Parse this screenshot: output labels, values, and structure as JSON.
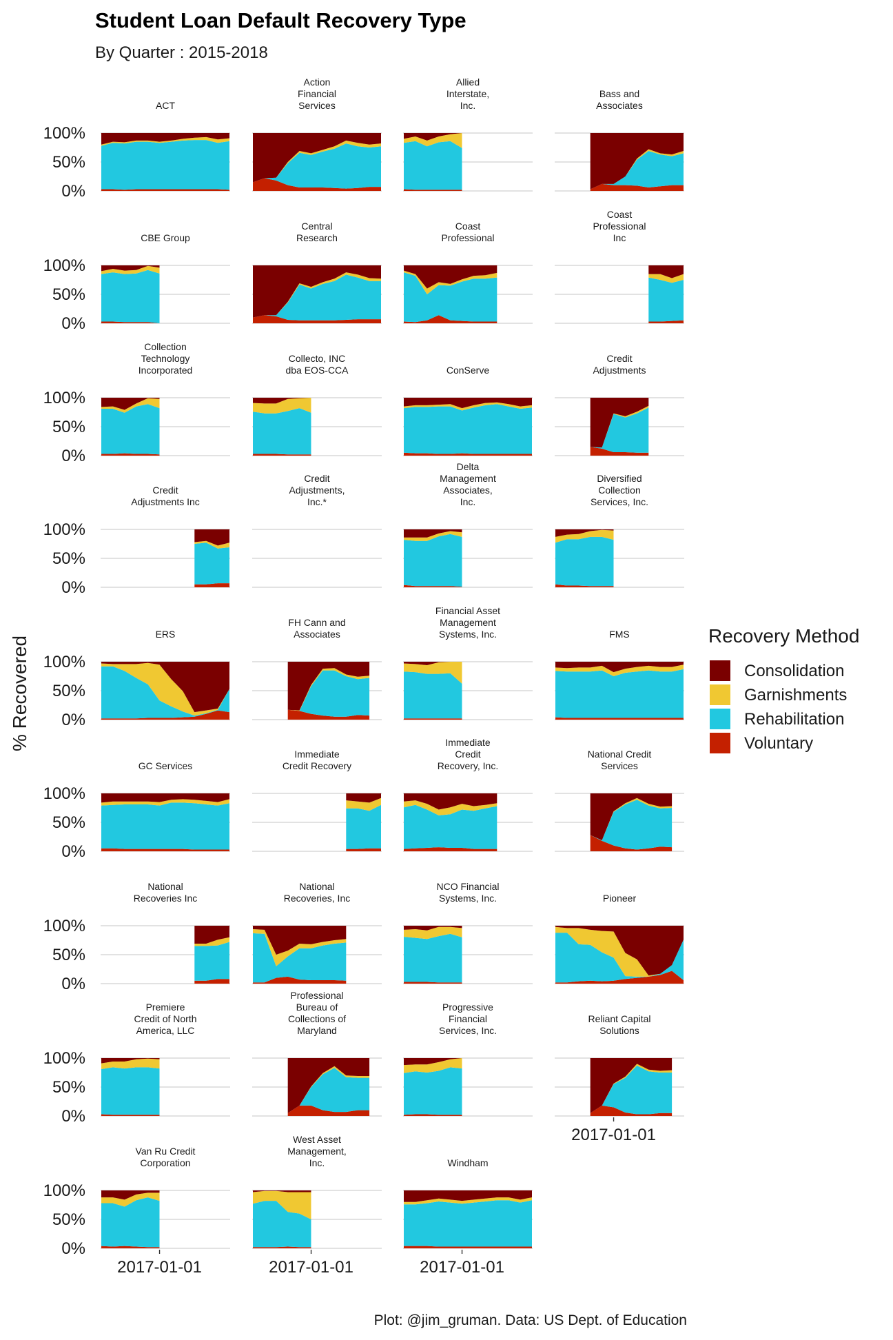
{
  "colors": {
    "Consolidation": "#7a0000",
    "Garnishments": "#f0c832",
    "Rehabilitation": "#22c8e0",
    "Voluntary": "#c42000"
  },
  "chart_data": {
    "type": "area",
    "stacked": "fill",
    "title": "Student Loan Default Recovery Type",
    "subtitle": "By Quarter : 2015-2018",
    "ylabel": "% Recovered",
    "xlabel": "",
    "ylim": [
      0,
      1
    ],
    "y_ticks": [
      "0%",
      "50%",
      "100%"
    ],
    "x_tick_label": "2017-01-01",
    "x_quarters": [
      "2015-Q4",
      "2016-Q1",
      "2016-Q2",
      "2016-Q3",
      "2016-Q4",
      "2017-Q1",
      "2017-Q2",
      "2017-Q3",
      "2017-Q4",
      "2018-Q1",
      "2018-Q2",
      "2018-Q3"
    ],
    "x_tick_quarter_index": 5,
    "grid": true,
    "facet_columns": 4,
    "legend": {
      "title": "Recovery Method",
      "position": "right",
      "entries": [
        "Consolidation",
        "Garnishments",
        "Rehabilitation",
        "Voluntary"
      ]
    },
    "caption": "Plot: @jim_gruman. Data: US Dept. of Education",
    "stack_order_bottom_to_top": [
      "Voluntary",
      "Rehabilitation",
      "Garnishments",
      "Consolidation"
    ],
    "facets": [
      {
        "label": "ACT",
        "start": 0,
        "voluntary": [
          0.03,
          0.03,
          0.02,
          0.03,
          0.03,
          0.03,
          0.03,
          0.03,
          0.03,
          0.03,
          0.03,
          0.02
        ],
        "rehab": [
          0.75,
          0.8,
          0.8,
          0.82,
          0.82,
          0.8,
          0.82,
          0.84,
          0.85,
          0.85,
          0.8,
          0.84
        ],
        "garnish": [
          0.02,
          0.02,
          0.02,
          0.02,
          0.02,
          0.02,
          0.02,
          0.03,
          0.04,
          0.05,
          0.06,
          0.05
        ]
      },
      {
        "label": "Action\nFinancial\nServices",
        "start": 0,
        "voluntary": [
          0.15,
          0.22,
          0.18,
          0.1,
          0.06,
          0.06,
          0.06,
          0.05,
          0.04,
          0.05,
          0.07,
          0.07
        ],
        "rehab": [
          0,
          0,
          0.05,
          0.38,
          0.6,
          0.56,
          0.62,
          0.68,
          0.78,
          0.72,
          0.68,
          0.7
        ],
        "garnish": [
          0,
          0,
          0,
          0.02,
          0.03,
          0.03,
          0.03,
          0.04,
          0.05,
          0.06,
          0.05,
          0.05
        ]
      },
      {
        "label": "Allied\nInterstate,\nInc.",
        "start": 0,
        "voluntary": [
          0.03,
          0.02,
          0.02,
          0.02,
          0.02,
          0.02
        ],
        "rehab": [
          0.8,
          0.84,
          0.75,
          0.82,
          0.84,
          0.72
        ],
        "garnish": [
          0.07,
          0.08,
          0.1,
          0.1,
          0.12,
          0.26
        ]
      },
      {
        "label": "Bass and\nAssociates",
        "start": 3,
        "voluntary": [
          0.03,
          0.12,
          0.1,
          0.1,
          0.09,
          0.06,
          0.08,
          0.1,
          0.1
        ],
        "rehab": [
          0,
          0,
          0.02,
          0.15,
          0.45,
          0.63,
          0.55,
          0.5,
          0.55
        ],
        "garnish": [
          0,
          0,
          0,
          0,
          0.02,
          0.03,
          0.02,
          0.03,
          0.04
        ]
      },
      {
        "label": "CBE Group",
        "start": 0,
        "voluntary": [
          0.03,
          0.03,
          0.02,
          0.02,
          0.02,
          0.0
        ],
        "rehab": [
          0.82,
          0.85,
          0.83,
          0.84,
          0.9,
          0.86
        ],
        "garnish": [
          0.05,
          0.06,
          0.06,
          0.06,
          0.07,
          0.1
        ]
      },
      {
        "label": "Central\nResearch",
        "start": 0,
        "voluntary": [
          0.1,
          0.14,
          0.12,
          0.06,
          0.05,
          0.05,
          0.05,
          0.05,
          0.06,
          0.07,
          0.07,
          0.07
        ],
        "rehab": [
          0,
          0,
          0.02,
          0.3,
          0.62,
          0.55,
          0.63,
          0.68,
          0.78,
          0.72,
          0.66,
          0.66
        ],
        "garnish": [
          0,
          0,
          0,
          0.01,
          0.02,
          0.03,
          0.03,
          0.04,
          0.04,
          0.05,
          0.05,
          0.04
        ]
      },
      {
        "label": "Coast\nProfessional",
        "start": 0,
        "voluntary": [
          0.03,
          0.02,
          0.05,
          0.14,
          0.05,
          0.04,
          0.03,
          0.03,
          0.03
        ],
        "rehab": [
          0.85,
          0.8,
          0.45,
          0.52,
          0.6,
          0.68,
          0.74,
          0.74,
          0.76
        ],
        "garnish": [
          0.03,
          0.03,
          0.1,
          0.05,
          0.03,
          0.04,
          0.05,
          0.06,
          0.08
        ]
      },
      {
        "label": "Coast\nProfessional\nInc",
        "start": 8,
        "voluntary": [
          0.03,
          0.03,
          0.04,
          0.05
        ],
        "rehab": [
          0.76,
          0.72,
          0.66,
          0.7
        ],
        "garnish": [
          0.06,
          0.1,
          0.08,
          0.1
        ]
      },
      {
        "label": "Collection\nTechnology\nIncorporated",
        "start": 0,
        "voluntary": [
          0.03,
          0.03,
          0.04,
          0.03,
          0.03,
          0.02
        ],
        "rehab": [
          0.78,
          0.78,
          0.7,
          0.82,
          0.86,
          0.8
        ],
        "garnish": [
          0.03,
          0.04,
          0.05,
          0.05,
          0.1,
          0.16
        ]
      },
      {
        "label": "Collecto, INC\ndba EOS-CCA",
        "start": 0,
        "voluntary": [
          0.03,
          0.03,
          0.03,
          0.02,
          0.02,
          0.02
        ],
        "rehab": [
          0.73,
          0.7,
          0.7,
          0.75,
          0.8,
          0.72
        ],
        "garnish": [
          0.15,
          0.17,
          0.17,
          0.21,
          0.17,
          0.26
        ]
      },
      {
        "label": "ConServe",
        "start": 0,
        "voluntary": [
          0.05,
          0.04,
          0.04,
          0.03,
          0.03,
          0.04,
          0.03,
          0.03,
          0.03,
          0.03,
          0.03,
          0.03
        ],
        "rehab": [
          0.77,
          0.8,
          0.8,
          0.82,
          0.82,
          0.74,
          0.8,
          0.84,
          0.86,
          0.82,
          0.78,
          0.8
        ],
        "garnish": [
          0.03,
          0.03,
          0.03,
          0.03,
          0.04,
          0.04,
          0.04,
          0.04,
          0.03,
          0.04,
          0.04,
          0.04
        ]
      },
      {
        "label": "Credit\nAdjustments",
        "start": 3,
        "voluntary": [
          0.15,
          0.12,
          0.06,
          0.06,
          0.05,
          0.05
        ],
        "rehab": [
          0,
          0.02,
          0.66,
          0.6,
          0.68,
          0.78
        ],
        "garnish": [
          0,
          0,
          0.01,
          0.02,
          0.03,
          0.03
        ]
      },
      {
        "label": "Credit\nAdjustments Inc",
        "start": 8,
        "voluntary": [
          0.05,
          0.05,
          0.07,
          0.07
        ],
        "rehab": [
          0.7,
          0.72,
          0.6,
          0.62
        ],
        "garnish": [
          0.03,
          0.03,
          0.05,
          0.08
        ]
      },
      {
        "label": "Credit\nAdjustments,\nInc.*",
        "start": 0,
        "voluntary": [],
        "rehab": [],
        "garnish": []
      },
      {
        "label": "Delta\nManagement\nAssociates,\nInc.",
        "start": 0,
        "voluntary": [
          0.04,
          0.02,
          0.02,
          0.02,
          0.02,
          0.01
        ],
        "rehab": [
          0.78,
          0.78,
          0.78,
          0.86,
          0.9,
          0.86
        ],
        "garnish": [
          0.04,
          0.06,
          0.06,
          0.05,
          0.05,
          0.08
        ]
      },
      {
        "label": "Diversified\nCollection\nServices, Inc.",
        "start": 0,
        "voluntary": [
          0.05,
          0.03,
          0.03,
          0.02,
          0.02,
          0.02
        ],
        "rehab": [
          0.72,
          0.8,
          0.8,
          0.85,
          0.85,
          0.8
        ],
        "garnish": [
          0.1,
          0.08,
          0.09,
          0.1,
          0.12,
          0.16
        ]
      },
      {
        "label": "ERS",
        "start": 0,
        "voluntary": [
          0.02,
          0.02,
          0.02,
          0.02,
          0.03,
          0.03,
          0.03,
          0.04,
          0.05,
          0.1,
          0.16,
          0.13
        ],
        "rehab": [
          0.9,
          0.9,
          0.82,
          0.7,
          0.58,
          0.3,
          0.2,
          0.1,
          0.02,
          0.01,
          0.01,
          0.4
        ],
        "garnish": [
          0.05,
          0.04,
          0.12,
          0.24,
          0.37,
          0.62,
          0.47,
          0.35,
          0.06,
          0.05,
          0.02,
          0
        ]
      },
      {
        "label": "FH Cann and\nAssociates",
        "start": 3,
        "voluntary": [
          0.17,
          0.15,
          0.1,
          0.07,
          0.05,
          0.05,
          0.08,
          0.07
        ],
        "rehab": [
          0,
          0,
          0.48,
          0.78,
          0.8,
          0.7,
          0.62,
          0.65
        ],
        "garnish": [
          0,
          0.01,
          0.02,
          0.03,
          0.04,
          0.03,
          0.04,
          0.04
        ]
      },
      {
        "label": "Financial Asset\nManagement\nSystems, Inc.",
        "start": 0,
        "voluntary": [
          0.02,
          0.02,
          0.02,
          0.02,
          0.02,
          0.02
        ],
        "rehab": [
          0.81,
          0.8,
          0.77,
          0.77,
          0.78,
          0.6
        ],
        "garnish": [
          0.14,
          0.14,
          0.15,
          0.2,
          0.2,
          0.38
        ]
      },
      {
        "label": "FMS",
        "start": 0,
        "voluntary": [
          0.04,
          0.03,
          0.03,
          0.03,
          0.03,
          0.03,
          0.03,
          0.03,
          0.03,
          0.03,
          0.03,
          0.03
        ],
        "rehab": [
          0.8,
          0.8,
          0.8,
          0.8,
          0.82,
          0.72,
          0.78,
          0.8,
          0.82,
          0.8,
          0.8,
          0.84
        ],
        "garnish": [
          0.06,
          0.06,
          0.07,
          0.07,
          0.08,
          0.07,
          0.07,
          0.08,
          0.08,
          0.08,
          0.08,
          0.08
        ]
      },
      {
        "label": "GC Services",
        "start": 0,
        "voluntary": [
          0.05,
          0.05,
          0.04,
          0.04,
          0.04,
          0.04,
          0.04,
          0.04,
          0.03,
          0.03,
          0.03,
          0.03
        ],
        "rehab": [
          0.74,
          0.75,
          0.77,
          0.77,
          0.77,
          0.75,
          0.8,
          0.8,
          0.8,
          0.78,
          0.76,
          0.8
        ],
        "garnish": [
          0.05,
          0.06,
          0.05,
          0.05,
          0.05,
          0.06,
          0.05,
          0.06,
          0.06,
          0.06,
          0.06,
          0.07
        ]
      },
      {
        "label": "Immediate\nCredit Recovery",
        "start": 8,
        "voluntary": [
          0.04,
          0.04,
          0.05,
          0.05
        ],
        "rehab": [
          0.7,
          0.7,
          0.65,
          0.75
        ],
        "garnish": [
          0.14,
          0.12,
          0.14,
          0.12
        ]
      },
      {
        "label": "Immediate\nCredit\nRecovery, Inc.",
        "start": 0,
        "voluntary": [
          0.04,
          0.05,
          0.06,
          0.07,
          0.06,
          0.06,
          0.04,
          0.04,
          0.04
        ],
        "rehab": [
          0.72,
          0.75,
          0.66,
          0.55,
          0.58,
          0.66,
          0.66,
          0.7,
          0.74
        ],
        "garnish": [
          0.1,
          0.08,
          0.1,
          0.1,
          0.12,
          0.1,
          0.08,
          0.06,
          0.05
        ]
      },
      {
        "label": "National Credit\nServices",
        "start": 3,
        "voluntary": [
          0.28,
          0.18,
          0.1,
          0.05,
          0.03,
          0.05,
          0.08,
          0.07
        ],
        "rehab": [
          0,
          0.01,
          0.58,
          0.76,
          0.86,
          0.74,
          0.66,
          0.68
        ],
        "garnish": [
          0,
          0,
          0.01,
          0.02,
          0.03,
          0.03,
          0.03,
          0.03
        ]
      },
      {
        "label": "National\nRecoveries Inc",
        "start": 8,
        "voluntary": [
          0.05,
          0.05,
          0.08,
          0.08
        ],
        "rehab": [
          0.6,
          0.6,
          0.58,
          0.64
        ],
        "garnish": [
          0.04,
          0.04,
          0.1,
          0.08
        ]
      },
      {
        "label": "National\nRecoveries, Inc",
        "start": 0,
        "voluntary": [
          0.02,
          0.02,
          0.1,
          0.12,
          0.07,
          0.06,
          0.06,
          0.06,
          0.05
        ],
        "rehab": [
          0.85,
          0.84,
          0.2,
          0.35,
          0.54,
          0.55,
          0.6,
          0.63,
          0.66
        ],
        "garnish": [
          0.07,
          0.07,
          0.2,
          0.1,
          0.08,
          0.07,
          0.06,
          0.06,
          0.06
        ]
      },
      {
        "label": "NCO Financial\nSystems, Inc.",
        "start": 0,
        "voluntary": [
          0.03,
          0.03,
          0.03,
          0.02,
          0.02,
          0.02
        ],
        "rehab": [
          0.78,
          0.76,
          0.74,
          0.8,
          0.84,
          0.78
        ],
        "garnish": [
          0.12,
          0.15,
          0.15,
          0.16,
          0.12,
          0.16
        ]
      },
      {
        "label": "Pioneer",
        "start": 0,
        "voluntary": [
          0.02,
          0.02,
          0.04,
          0.05,
          0.04,
          0.05,
          0.08,
          0.1,
          0.12,
          0.15,
          0.22,
          0.06
        ],
        "rehab": [
          0.86,
          0.86,
          0.64,
          0.62,
          0.5,
          0.4,
          0.05,
          0.02,
          0.0,
          0.02,
          0.1,
          0.7
        ],
        "garnish": [
          0.1,
          0.08,
          0.28,
          0.26,
          0.37,
          0.45,
          0.4,
          0.3,
          0.02,
          0,
          0,
          0
        ]
      },
      {
        "label": "Premiere\nCredit of North\nAmerica, LLC",
        "start": 0,
        "voluntary": [
          0.03,
          0.02,
          0.02,
          0.02,
          0.02,
          0.02
        ],
        "rehab": [
          0.78,
          0.82,
          0.8,
          0.82,
          0.82,
          0.8
        ],
        "garnish": [
          0.1,
          0.1,
          0.12,
          0.14,
          0.15,
          0.16
        ]
      },
      {
        "label": "Professional\nBureau of\nCollections of\nMaryland",
        "start": 3,
        "voluntary": [
          0.05,
          0.18,
          0.18,
          0.1,
          0.07,
          0.07,
          0.1,
          0.1
        ],
        "rehab": [
          0,
          0,
          0.32,
          0.62,
          0.76,
          0.6,
          0.56,
          0.56
        ],
        "garnish": [
          0,
          0,
          0.01,
          0.02,
          0.03,
          0.03,
          0.03,
          0.03
        ]
      },
      {
        "label": "Progressive\nFinancial\nServices, Inc.",
        "start": 0,
        "voluntary": [
          0.02,
          0.03,
          0.03,
          0.02,
          0.02,
          0.02
        ],
        "rehab": [
          0.72,
          0.74,
          0.72,
          0.76,
          0.82,
          0.8
        ],
        "garnish": [
          0.14,
          0.12,
          0.14,
          0.15,
          0.14,
          0.18
        ]
      },
      {
        "label": "Reliant Capital\nSolutions",
        "start": 3,
        "voluntary": [
          0.05,
          0.18,
          0.15,
          0.06,
          0.03,
          0.03,
          0.05,
          0.05
        ],
        "rehab": [
          0,
          0,
          0.4,
          0.6,
          0.84,
          0.74,
          0.7,
          0.7
        ],
        "garnish": [
          0,
          0,
          0.01,
          0.02,
          0.03,
          0.03,
          0.03,
          0.04
        ]
      },
      {
        "label": "Van Ru Credit\nCorporation",
        "start": 0,
        "voluntary": [
          0.04,
          0.03,
          0.04,
          0.03,
          0.02,
          0.02
        ],
        "rehab": [
          0.74,
          0.75,
          0.68,
          0.8,
          0.86,
          0.8
        ],
        "garnish": [
          0.1,
          0.1,
          0.12,
          0.1,
          0.08,
          0.14
        ]
      },
      {
        "label": "West Asset\nManagement,\nInc.",
        "start": 0,
        "voluntary": [
          0.02,
          0.02,
          0.02,
          0.03,
          0.02,
          0.02
        ],
        "rehab": [
          0.75,
          0.8,
          0.8,
          0.6,
          0.58,
          0.48
        ],
        "garnish": [
          0.2,
          0.17,
          0.17,
          0.34,
          0.37,
          0.47
        ]
      },
      {
        "label": "Windham",
        "start": 0,
        "voluntary": [
          0.04,
          0.04,
          0.04,
          0.03,
          0.03,
          0.03,
          0.03,
          0.03,
          0.03,
          0.03,
          0.03,
          0.03
        ],
        "rehab": [
          0.72,
          0.72,
          0.74,
          0.78,
          0.76,
          0.74,
          0.76,
          0.78,
          0.8,
          0.8,
          0.76,
          0.8
        ],
        "garnish": [
          0.04,
          0.04,
          0.05,
          0.05,
          0.05,
          0.05,
          0.05,
          0.05,
          0.05,
          0.05,
          0.05,
          0.05
        ]
      }
    ]
  }
}
